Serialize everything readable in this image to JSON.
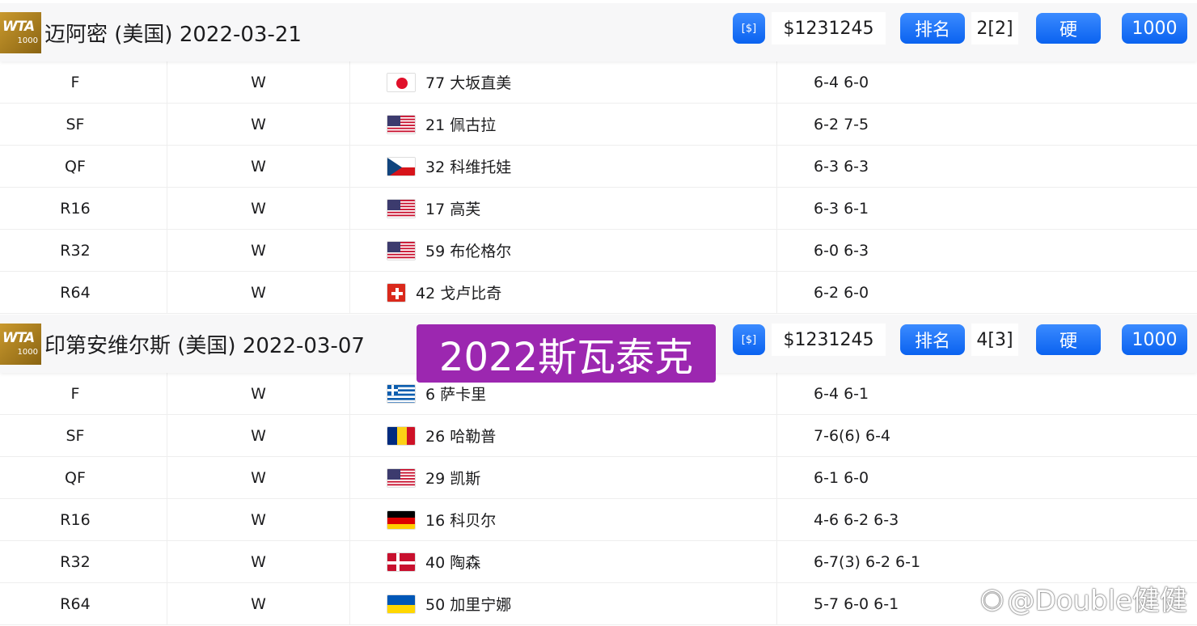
{
  "tournaments": [
    {
      "title": "迈阿密 (美国) 2022-03-21",
      "prize": "$1231245",
      "rank_label": "排名",
      "rank": "2[2]",
      "surface": "硬",
      "level": "1000",
      "matches": [
        {
          "round": "F",
          "result": "W",
          "flag": "jp",
          "opponent": "77 大坂直美",
          "score": "6-4 6-0"
        },
        {
          "round": "SF",
          "result": "W",
          "flag": "us",
          "opponent": "21 佩古拉",
          "score": "6-2 7-5"
        },
        {
          "round": "QF",
          "result": "W",
          "flag": "cz",
          "opponent": "32 科维托娃",
          "score": "6-3 6-3"
        },
        {
          "round": "R16",
          "result": "W",
          "flag": "us",
          "opponent": "17 高芙",
          "score": "6-3 6-1"
        },
        {
          "round": "R32",
          "result": "W",
          "flag": "us",
          "opponent": "59 布伦格尔",
          "score": "6-0 6-3"
        },
        {
          "round": "R64",
          "result": "W",
          "flag": "ch",
          "opponent": "42 戈卢比奇",
          "score": "6-2 6-0"
        }
      ]
    },
    {
      "title": "印第安维尔斯 (美国) 2022-03-07",
      "prize": "$1231245",
      "rank_label": "排名",
      "rank": "4[3]",
      "surface": "硬",
      "level": "1000",
      "matches": [
        {
          "round": "F",
          "result": "W",
          "flag": "gr",
          "opponent": "6 萨卡里",
          "score": "6-4 6-1"
        },
        {
          "round": "SF",
          "result": "W",
          "flag": "ro",
          "opponent": "26 哈勒普",
          "score": "7-6(6) 6-4"
        },
        {
          "round": "QF",
          "result": "W",
          "flag": "us",
          "opponent": "29 凯斯",
          "score": "6-1 6-0"
        },
        {
          "round": "R16",
          "result": "W",
          "flag": "de",
          "opponent": "16 科贝尔",
          "score": "4-6 6-2 6-3"
        },
        {
          "round": "R32",
          "result": "W",
          "flag": "dk",
          "opponent": "40 陶森",
          "score": "6-7(3) 6-2 6-1"
        },
        {
          "round": "R64",
          "result": "W",
          "flag": "ua",
          "opponent": "50 加里宁娜",
          "score": "5-7 6-0 6-1"
        }
      ]
    }
  ],
  "logo": {
    "text": "WTA",
    "sub": "1000"
  },
  "overlay_label": "2022斯瓦泰克",
  "watermark": "@Double健健",
  "colors": {
    "accent": "#0a62f0",
    "overlay": "#9c27b0",
    "logo": "#b0831f"
  }
}
